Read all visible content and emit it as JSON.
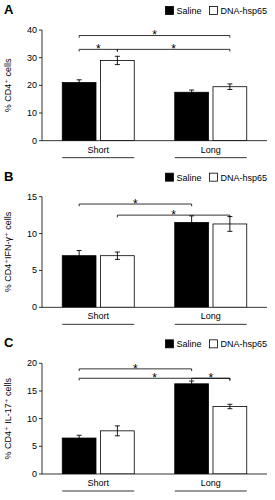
{
  "chart_data": [
    {
      "type": "bar",
      "title": "A",
      "ylabel": "% CD4⁺ cells",
      "categories": [
        "Short",
        "Long"
      ],
      "series": [
        {
          "name": "Saline",
          "color": "#000000",
          "values": [
            21.0,
            17.5
          ],
          "errors": [
            1.0,
            0.8
          ]
        },
        {
          "name": "DNA-hsp65",
          "color": "#ffffff",
          "values": [
            29.0,
            19.5
          ],
          "errors": [
            1.5,
            1.0
          ]
        }
      ],
      "ylim": [
        0,
        40
      ],
      "yticks": [
        0,
        10,
        20,
        30,
        40
      ],
      "grid": false,
      "legend": "upper right",
      "annotations": [
        {
          "label": "*",
          "y": 33,
          "from": [
            "Short",
            "Saline"
          ],
          "to": [
            "Short",
            "DNA-hsp65"
          ]
        },
        {
          "label": "*",
          "y": 38,
          "from": [
            "Short",
            "Saline"
          ],
          "to": [
            "Long",
            "DNA-hsp65"
          ]
        },
        {
          "label": "*",
          "y": 33,
          "from": [
            "Short",
            "DNA-hsp65"
          ],
          "to": [
            "Long",
            "DNA-hsp65"
          ]
        }
      ]
    },
    {
      "type": "bar",
      "title": "B",
      "ylabel": "% CD4⁺IFN-γ⁺ cells",
      "categories": [
        "Short",
        "Long"
      ],
      "series": [
        {
          "name": "Saline",
          "color": "#000000",
          "values": [
            7.0,
            11.5
          ],
          "errors": [
            0.7,
            0.9
          ]
        },
        {
          "name": "DNA-hsp65",
          "color": "#ffffff",
          "values": [
            7.0,
            11.3
          ],
          "errors": [
            0.5,
            1.0
          ]
        }
      ],
      "ylim": [
        0,
        15
      ],
      "yticks": [
        0,
        5,
        10,
        15
      ],
      "grid": false,
      "legend": "upper right",
      "annotations": [
        {
          "label": "*",
          "y": 14.0,
          "from": [
            "Short",
            "Saline"
          ],
          "to": [
            "Long",
            "Saline"
          ]
        },
        {
          "label": "*",
          "y": 12.5,
          "from": [
            "Short",
            "DNA-hsp65"
          ],
          "to": [
            "Long",
            "DNA-hsp65"
          ]
        }
      ]
    },
    {
      "type": "bar",
      "title": "C",
      "ylabel": "% CD4⁺ IL-17⁺ cells",
      "categories": [
        "Short",
        "Long"
      ],
      "series": [
        {
          "name": "Saline",
          "color": "#000000",
          "values": [
            6.5,
            16.3
          ],
          "errors": [
            0.5,
            0.5
          ]
        },
        {
          "name": "DNA-hsp65",
          "color": "#ffffff",
          "values": [
            7.8,
            12.2
          ],
          "errors": [
            0.9,
            0.4
          ]
        }
      ],
      "ylim": [
        0,
        20
      ],
      "yticks": [
        0,
        5,
        10,
        15,
        20
      ],
      "grid": false,
      "legend": "upper right",
      "annotations": [
        {
          "label": "*",
          "y": 19.0,
          "from": [
            "Short",
            "Saline"
          ],
          "to": [
            "Long",
            "Saline"
          ]
        },
        {
          "label": "*",
          "y": 17.3,
          "from": [
            "Short",
            "Saline"
          ],
          "to": [
            "Long",
            "DNA-hsp65"
          ]
        },
        {
          "label": "*",
          "y": 17.3,
          "from": [
            "Long",
            "Saline"
          ],
          "to": [
            "Long",
            "DNA-hsp65"
          ]
        }
      ]
    }
  ]
}
